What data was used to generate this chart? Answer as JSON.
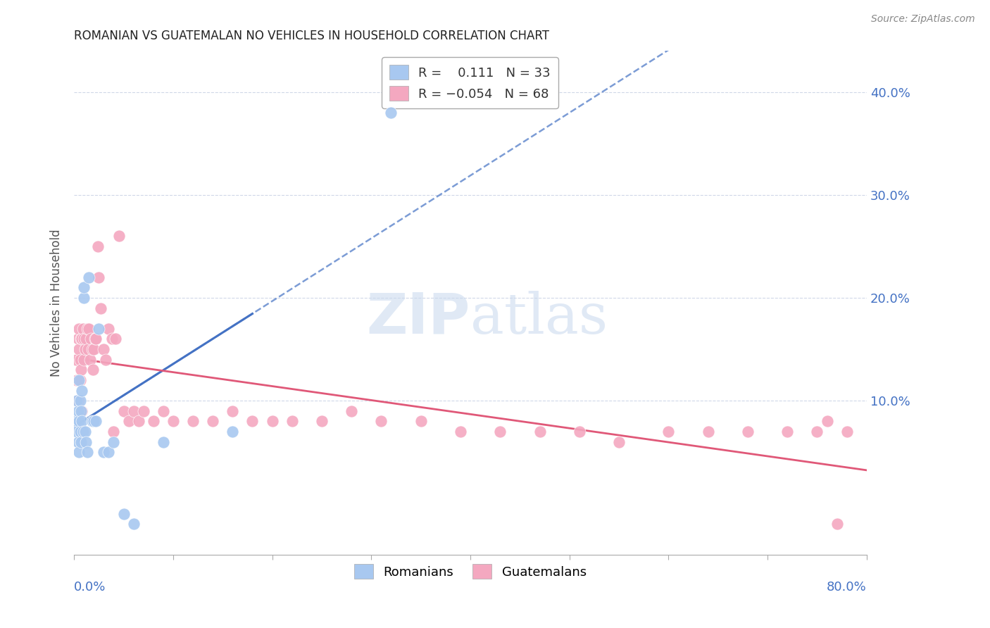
{
  "title": "ROMANIAN VS GUATEMALAN NO VEHICLES IN HOUSEHOLD CORRELATION CHART",
  "source": "Source: ZipAtlas.com",
  "ylabel": "No Vehicles in Household",
  "ytick_labels": [
    "10.0%",
    "20.0%",
    "30.0%",
    "40.0%"
  ],
  "ytick_values": [
    0.1,
    0.2,
    0.3,
    0.4
  ],
  "xlim": [
    0.0,
    0.8
  ],
  "ylim": [
    -0.05,
    0.44
  ],
  "watermark": "ZIPatlas",
  "romanian_color": "#a8c8f0",
  "guatemalan_color": "#f4a8c0",
  "trendline_romanian_color": "#4472c4",
  "trendline_guatemalan_color": "#e05878",
  "axis_color": "#4472c4",
  "grid_color": "#d0d8e8",
  "romanians_x": [
    0.002,
    0.003,
    0.003,
    0.004,
    0.004,
    0.005,
    0.005,
    0.005,
    0.006,
    0.006,
    0.007,
    0.007,
    0.008,
    0.008,
    0.009,
    0.01,
    0.01,
    0.011,
    0.012,
    0.013,
    0.015,
    0.018,
    0.02,
    0.022,
    0.025,
    0.03,
    0.035,
    0.04,
    0.05,
    0.06,
    0.09,
    0.16,
    0.32
  ],
  "romanians_y": [
    0.08,
    0.1,
    0.07,
    0.09,
    0.06,
    0.12,
    0.08,
    0.05,
    0.1,
    0.07,
    0.09,
    0.06,
    0.11,
    0.08,
    0.07,
    0.2,
    0.21,
    0.07,
    0.06,
    0.05,
    0.22,
    0.08,
    0.08,
    0.08,
    0.17,
    0.05,
    0.05,
    0.06,
    -0.01,
    -0.02,
    0.06,
    0.07,
    0.38
  ],
  "guatemalans_x": [
    0.002,
    0.003,
    0.004,
    0.004,
    0.005,
    0.005,
    0.006,
    0.006,
    0.007,
    0.007,
    0.008,
    0.008,
    0.009,
    0.01,
    0.01,
    0.011,
    0.012,
    0.013,
    0.014,
    0.015,
    0.016,
    0.017,
    0.018,
    0.019,
    0.02,
    0.021,
    0.022,
    0.024,
    0.025,
    0.027,
    0.03,
    0.032,
    0.035,
    0.038,
    0.04,
    0.042,
    0.045,
    0.05,
    0.055,
    0.06,
    0.065,
    0.07,
    0.08,
    0.09,
    0.1,
    0.12,
    0.14,
    0.16,
    0.18,
    0.2,
    0.22,
    0.25,
    0.28,
    0.31,
    0.35,
    0.39,
    0.43,
    0.47,
    0.51,
    0.55,
    0.6,
    0.64,
    0.68,
    0.72,
    0.75,
    0.76,
    0.77,
    0.78
  ],
  "guatemalans_y": [
    0.14,
    0.12,
    0.16,
    0.1,
    0.15,
    0.17,
    0.14,
    0.12,
    0.16,
    0.13,
    0.16,
    0.09,
    0.17,
    0.16,
    0.14,
    0.15,
    0.16,
    0.17,
    0.15,
    0.17,
    0.14,
    0.16,
    0.15,
    0.13,
    0.15,
    0.16,
    0.16,
    0.25,
    0.22,
    0.19,
    0.15,
    0.14,
    0.17,
    0.16,
    0.07,
    0.16,
    0.26,
    0.09,
    0.08,
    0.09,
    0.08,
    0.09,
    0.08,
    0.09,
    0.08,
    0.08,
    0.08,
    0.09,
    0.08,
    0.08,
    0.08,
    0.08,
    0.09,
    0.08,
    0.08,
    0.07,
    0.07,
    0.07,
    0.07,
    0.06,
    0.07,
    0.07,
    0.07,
    0.07,
    0.07,
    0.08,
    -0.02,
    0.07
  ]
}
